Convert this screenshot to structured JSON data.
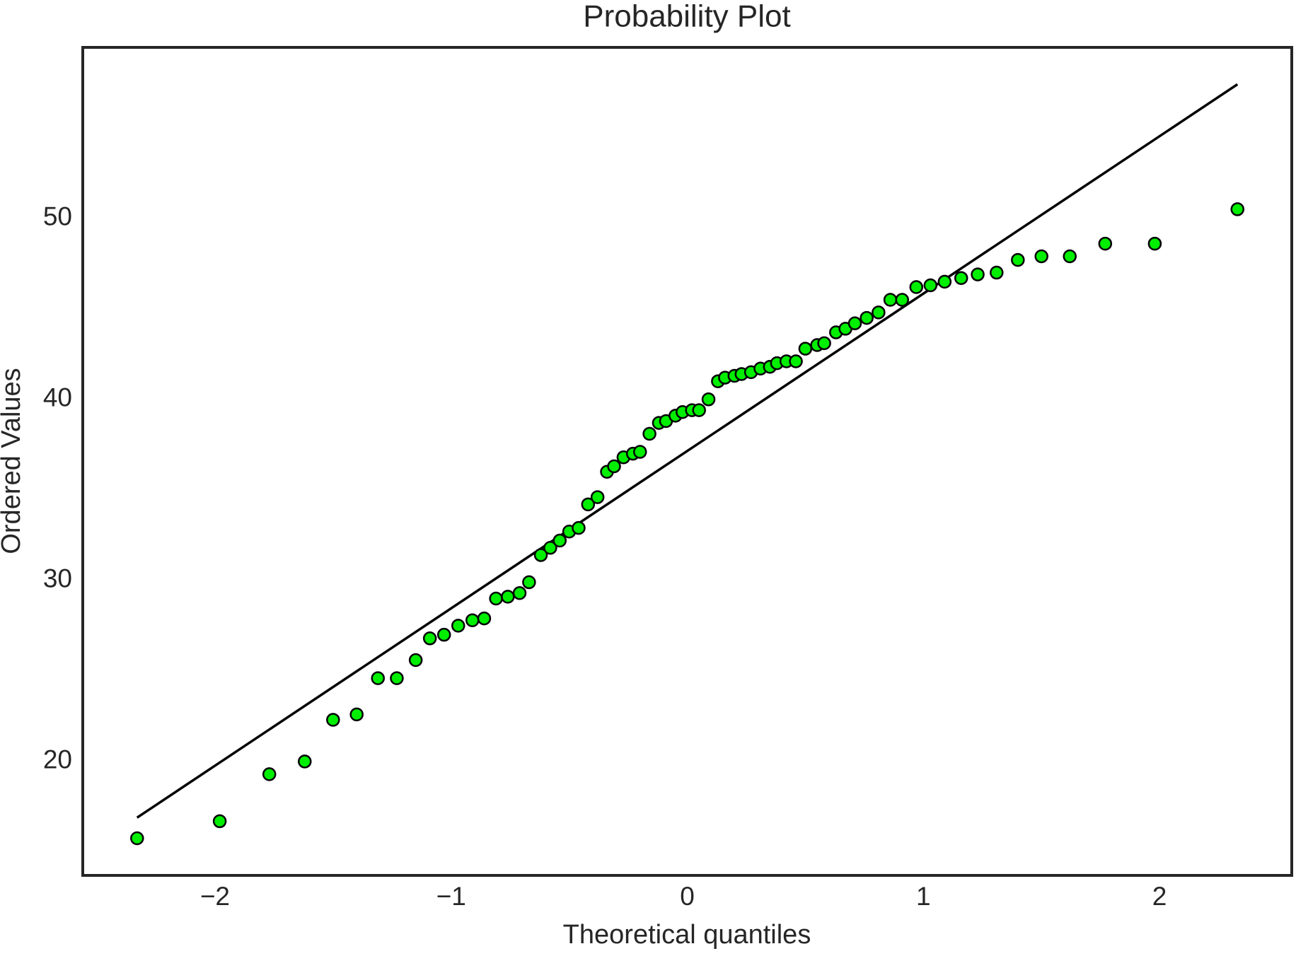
{
  "chart_data": {
    "type": "scatter",
    "title": "Probability Plot",
    "xlabel": "Theoretical quantiles",
    "ylabel": "Ordered Values",
    "xlim": [
      -2.56,
      2.56
    ],
    "ylim": [
      13.71,
      59.44
    ],
    "xticks": [
      {
        "value": -2,
        "label": "−2"
      },
      {
        "value": -1,
        "label": "−1"
      },
      0,
      1,
      2
    ],
    "yticks": [
      20,
      30,
      40,
      50
    ],
    "color": "#00ee00",
    "edgecolor": "#000000",
    "x": [
      -2.33,
      -1.98,
      -1.77,
      -1.62,
      -1.5,
      -1.4,
      -1.31,
      -1.23,
      -1.15,
      -1.09,
      -1.03,
      -0.97,
      -0.91,
      -0.86,
      -0.81,
      -0.76,
      -0.71,
      -0.67,
      -0.62,
      -0.58,
      -0.54,
      -0.5,
      -0.46,
      -0.42,
      -0.38,
      -0.34,
      -0.31,
      -0.27,
      -0.23,
      -0.2,
      -0.16,
      -0.12,
      -0.09,
      -0.05,
      -0.02,
      0.02,
      0.05,
      0.09,
      0.13,
      0.16,
      0.2,
      0.23,
      0.27,
      0.31,
      0.35,
      0.38,
      0.42,
      0.46,
      0.5,
      0.55,
      0.58,
      0.63,
      0.67,
      0.71,
      0.76,
      0.81,
      0.86,
      0.91,
      0.97,
      1.03,
      1.09,
      1.16,
      1.23,
      1.31,
      1.4,
      1.5,
      1.62,
      1.77,
      1.98,
      2.33
    ],
    "values": [
      15.76,
      16.7,
      19.3,
      20.0,
      22.3,
      22.6,
      24.6,
      24.6,
      25.6,
      26.8,
      27.0,
      27.5,
      27.8,
      27.9,
      29.0,
      29.1,
      29.3,
      29.9,
      31.4,
      31.8,
      32.2,
      32.7,
      32.9,
      34.2,
      34.6,
      36.0,
      36.3,
      36.8,
      37.0,
      37.1,
      38.1,
      38.7,
      38.8,
      39.1,
      39.3,
      39.4,
      39.4,
      40.0,
      41.0,
      41.2,
      41.3,
      41.4,
      41.5,
      41.7,
      41.8,
      42.0,
      42.1,
      42.1,
      42.8,
      43.0,
      43.1,
      43.7,
      43.9,
      44.2,
      44.5,
      44.8,
      45.5,
      45.5,
      46.2,
      46.3,
      46.5,
      46.7,
      46.9,
      47.0,
      47.7,
      47.9,
      47.9,
      48.6,
      48.6,
      50.5
    ],
    "line": {
      "x": [
        -2.33,
        2.33
      ],
      "values": [
        16.9,
        57.4
      ],
      "color": "#000000"
    }
  }
}
